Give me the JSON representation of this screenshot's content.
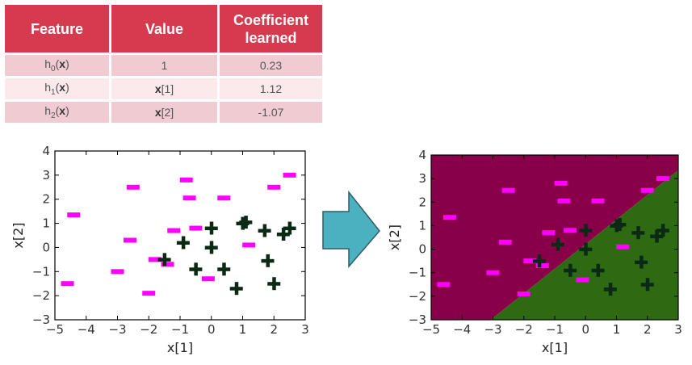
{
  "table": {
    "headers": [
      "Feature",
      "Value",
      "Coefficient learned"
    ],
    "rows": [
      {
        "feature": "h",
        "feature_sub": "0",
        "feature_arg": "x",
        "value": "1",
        "value_is_vector": false,
        "coefficient": "0.23"
      },
      {
        "feature": "h",
        "feature_sub": "1",
        "feature_arg": "x",
        "value": "x",
        "value_index": "[1]",
        "value_is_vector": true,
        "coefficient": "1.12"
      },
      {
        "feature": "h",
        "feature_sub": "2",
        "feature_arg": "x",
        "value": "x",
        "value_index": "[2]",
        "value_is_vector": true,
        "coefficient": "-1.07"
      }
    ]
  },
  "arrow": {
    "icon": "right-arrow-icon",
    "color": "#4bb1c1"
  },
  "chart_data": [
    {
      "type": "scatter",
      "title": "",
      "xlabel": "x[1]",
      "ylabel": "x[2]",
      "xlim": [
        -5,
        3
      ],
      "ylim": [
        -3,
        4
      ],
      "xticks": [
        "−5",
        "−4",
        "−3",
        "−2",
        "−1",
        "0",
        "1",
        "2",
        "3"
      ],
      "yticks": [
        "−3",
        "−2",
        "−1",
        "0",
        "1",
        "2",
        "3",
        "4"
      ],
      "decision_regions": false,
      "series": [
        {
          "marker": "minus",
          "color": "#ff00ff",
          "x": [
            -4.4,
            -4.6,
            -2.5,
            -2.6,
            -3.0,
            -2.0,
            -1.8,
            -1.2,
            -0.8,
            -0.7,
            -0.5,
            -1.4,
            0.4,
            -0.1,
            1.2,
            2.0,
            2.5
          ],
          "y": [
            1.35,
            -1.5,
            2.5,
            0.3,
            -1.0,
            -1.9,
            -0.5,
            0.7,
            2.8,
            2.05,
            0.8,
            -0.7,
            2.05,
            -1.3,
            0.1,
            2.5,
            3.0
          ]
        },
        {
          "marker": "plus",
          "color": "#0b2a16",
          "x": [
            -1.5,
            -0.9,
            0,
            0,
            -0.5,
            0.4,
            1.0,
            1.1,
            1.7,
            1.8,
            2.3,
            2.5,
            2.0,
            0.8
          ],
          "y": [
            -0.5,
            0.2,
            0.8,
            0,
            -0.9,
            -0.9,
            1.0,
            1.05,
            0.7,
            -0.55,
            0.55,
            0.8,
            -1.5,
            -1.7
          ]
        }
      ]
    },
    {
      "type": "scatter",
      "title": "",
      "xlabel": "x[1]",
      "ylabel": "x[2]",
      "xlim": [
        -5,
        3
      ],
      "ylim": [
        -3,
        4
      ],
      "xticks": [
        "−5",
        "−4",
        "−3",
        "−2",
        "−1",
        "0",
        "1",
        "2",
        "3"
      ],
      "yticks": [
        "−3",
        "−2",
        "−1",
        "0",
        "1",
        "2",
        "3",
        "4"
      ],
      "decision_regions": true,
      "region_colors": {
        "negative": "#8a0048",
        "positive": "#2d6a12"
      },
      "coefficients": [
        0.23,
        1.12,
        -1.07
      ],
      "series": [
        {
          "marker": "minus",
          "color": "#ff00ff",
          "x": [
            -4.4,
            -4.6,
            -2.5,
            -2.6,
            -3.0,
            -2.0,
            -1.8,
            -1.2,
            -0.8,
            -0.7,
            -0.5,
            -1.4,
            0.4,
            -0.1,
            1.2,
            2.0,
            2.5
          ],
          "y": [
            1.35,
            -1.5,
            2.5,
            0.3,
            -1.0,
            -1.9,
            -0.5,
            0.7,
            2.8,
            2.05,
            0.8,
            -0.7,
            2.05,
            -1.3,
            0.1,
            2.5,
            3.0
          ]
        },
        {
          "marker": "plus",
          "color": "#0b2a16",
          "x": [
            -1.5,
            -0.9,
            0,
            0,
            -0.5,
            0.4,
            1.0,
            1.1,
            1.7,
            1.8,
            2.3,
            2.5,
            2.0,
            0.8
          ],
          "y": [
            -0.5,
            0.2,
            0.8,
            0,
            -0.9,
            -0.9,
            1.0,
            1.05,
            0.7,
            -0.55,
            0.55,
            0.8,
            -1.5,
            -1.7
          ]
        }
      ]
    }
  ]
}
